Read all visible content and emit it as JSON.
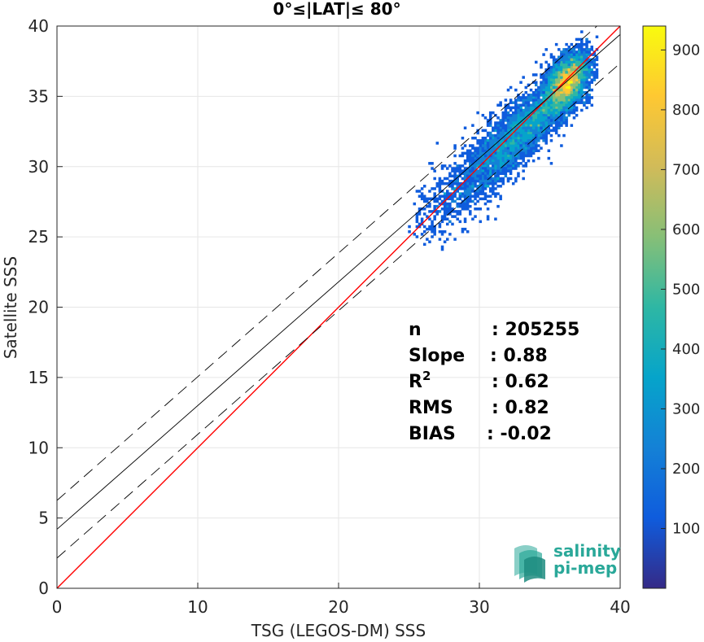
{
  "chart_data": {
    "type": "heatmap",
    "title": "0°≤|LAT|≤ 80°",
    "xlabel": "TSG (LEGOS-DM) SSS",
    "ylabel": "Satellite SSS",
    "xlim": [
      0,
      40
    ],
    "ylim": [
      0,
      40
    ],
    "xticks": [
      "0",
      "10",
      "20",
      "30",
      "40"
    ],
    "yticks": [
      "0",
      "5",
      "10",
      "15",
      "20",
      "25",
      "30",
      "35",
      "40"
    ],
    "grid": true,
    "colormap": "parula",
    "colorbar": {
      "range": [
        0,
        940
      ],
      "ticks": [
        "100",
        "200",
        "300",
        "400",
        "500",
        "600",
        "700",
        "800",
        "900"
      ],
      "tick_values": [
        100,
        200,
        300,
        400,
        500,
        600,
        700,
        800,
        900
      ]
    },
    "lines": [
      {
        "name": "1:1",
        "color": "#ff0000",
        "style": "solid",
        "slope": 1.0,
        "intercept": 0.0
      },
      {
        "name": "fit",
        "color": "#000000",
        "style": "solid",
        "slope": 0.88,
        "intercept": 4.2
      },
      {
        "name": "fit+std",
        "color": "#000000",
        "style": "dashed",
        "slope": 0.88,
        "intercept": 6.25
      },
      {
        "name": "fit-std",
        "color": "#000000",
        "style": "dashed",
        "slope": 0.88,
        "intercept": 2.15
      }
    ],
    "density_core": {
      "x": 36.2,
      "y": 36.0,
      "peak_count": 940
    },
    "stats": [
      {
        "label": "n",
        "value": ": 205255"
      },
      {
        "label": "Slope",
        "value": ": 0.88"
      },
      {
        "label": "R",
        "sup": "2",
        "value": ": 0.62"
      },
      {
        "label": "RMS",
        "value": ": 0.82"
      },
      {
        "label": "BIAS",
        "value": ": -0.02"
      }
    ]
  },
  "logo": {
    "line1": "salinity",
    "line2": "pi-mep"
  },
  "colors": {
    "one_to_one": "#ff0000",
    "fit": "#000000",
    "logo": "#2aa899"
  }
}
